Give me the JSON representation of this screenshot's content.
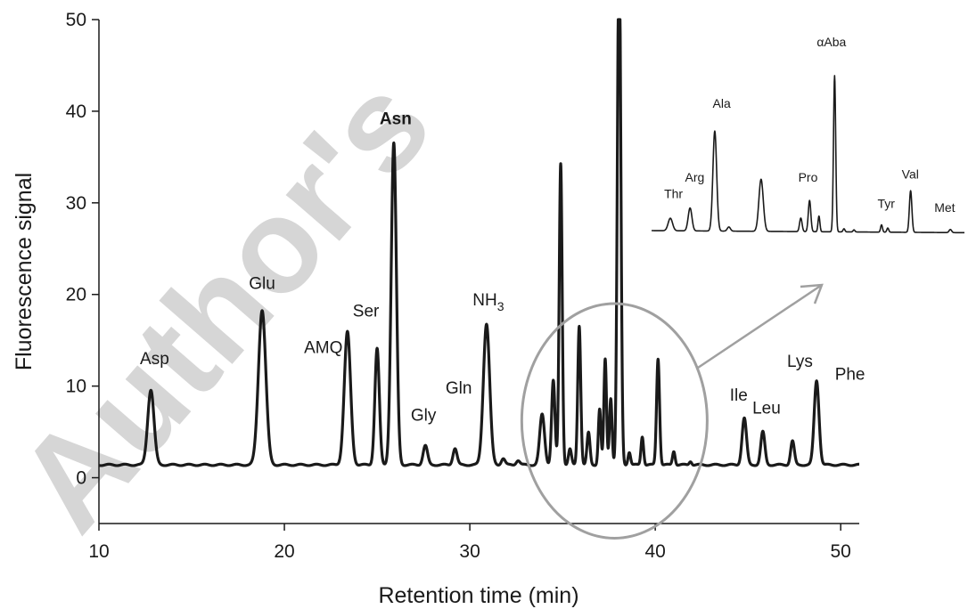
{
  "watermark": "Author's",
  "chart_data": {
    "type": "line",
    "xlabel": "Retention time (min)",
    "ylabel": "Fluorescence signal",
    "xlim": [
      10,
      51
    ],
    "ylim": [
      -5,
      50
    ],
    "x_ticks": [
      10,
      20,
      30,
      40,
      50
    ],
    "y_ticks": [
      0,
      10,
      20,
      30,
      40,
      50
    ],
    "grid": false,
    "baseline": 1.4,
    "line_color": "#1a1a1a",
    "callout_color": "#a0a0a0",
    "peaks": [
      {
        "x": 12.8,
        "y": 9.6,
        "w": 0.17
      },
      {
        "x": 18.8,
        "y": 18.3,
        "w": 0.2
      },
      {
        "x": 23.4,
        "y": 15.9,
        "w": 0.17
      },
      {
        "x": 25.0,
        "y": 14.1,
        "w": 0.12
      },
      {
        "x": 25.9,
        "y": 36.5,
        "w": 0.14
      },
      {
        "x": 27.6,
        "y": 3.5,
        "w": 0.12
      },
      {
        "x": 29.2,
        "y": 3.2,
        "w": 0.11
      },
      {
        "x": 30.9,
        "y": 16.8,
        "w": 0.17
      },
      {
        "x": 31.8,
        "y": 2.1,
        "w": 0.1
      },
      {
        "x": 32.6,
        "y": 1.9,
        "w": 0.1
      },
      {
        "x": 33.9,
        "y": 6.9,
        "w": 0.13
      },
      {
        "x": 34.5,
        "y": 10.6,
        "w": 0.09
      },
      {
        "x": 34.9,
        "y": 34.3,
        "w": 0.08
      },
      {
        "x": 35.4,
        "y": 3.1,
        "w": 0.08
      },
      {
        "x": 35.9,
        "y": 16.6,
        "w": 0.08
      },
      {
        "x": 36.4,
        "y": 4.9,
        "w": 0.08
      },
      {
        "x": 37.0,
        "y": 7.5,
        "w": 0.07
      },
      {
        "x": 37.3,
        "y": 12.9,
        "w": 0.07
      },
      {
        "x": 37.6,
        "y": 8.7,
        "w": 0.07
      },
      {
        "x": 38.05,
        "y": 60.0,
        "w": 0.09
      },
      {
        "x": 38.6,
        "y": 2.8,
        "w": 0.07
      },
      {
        "x": 39.3,
        "y": 4.5,
        "w": 0.07
      },
      {
        "x": 40.15,
        "y": 13.0,
        "w": 0.08
      },
      {
        "x": 41.0,
        "y": 2.9,
        "w": 0.07
      },
      {
        "x": 41.9,
        "y": 1.8,
        "w": 0.07
      },
      {
        "x": 44.8,
        "y": 6.5,
        "w": 0.12
      },
      {
        "x": 45.8,
        "y": 5.0,
        "w": 0.11
      },
      {
        "x": 47.4,
        "y": 4.0,
        "w": 0.1
      },
      {
        "x": 48.7,
        "y": 10.6,
        "w": 0.13
      }
    ],
    "peak_labels": [
      {
        "text": "Asp",
        "x": 13.0,
        "y": 12.4,
        "bold": false
      },
      {
        "text": "Glu",
        "x": 18.8,
        "y": 20.6,
        "bold": false
      },
      {
        "text": "AMQ",
        "x": 22.1,
        "y": 13.6,
        "bold": false
      },
      {
        "text": "Ser",
        "x": 24.4,
        "y": 17.6,
        "bold": false
      },
      {
        "text": "Asn",
        "x": 26.0,
        "y": 38.6,
        "bold": true
      },
      {
        "text": "Gly",
        "x": 27.5,
        "y": 6.2,
        "bold": false
      },
      {
        "text": "Gln",
        "x": 29.4,
        "y": 9.2,
        "bold": false
      },
      {
        "text": "NH",
        "sub": "3",
        "x": 31.0,
        "y": 18.8,
        "bold": false
      },
      {
        "text": "Ile",
        "x": 44.5,
        "y": 8.4,
        "bold": false
      },
      {
        "text": "Leu",
        "x": 46.0,
        "y": 7.0,
        "bold": false
      },
      {
        "text": "Lys",
        "x": 47.8,
        "y": 12.1,
        "bold": false
      },
      {
        "text": "Phe",
        "x": 50.5,
        "y": 10.7,
        "bold": false
      }
    ],
    "zoom_region": {
      "center_x": 37.8,
      "center_y": 6.2,
      "radius_x": 5.0,
      "radius_y": 12.8
    },
    "inset": {
      "description": "enlarged view of 37-43 min region",
      "peaks": [
        {
          "x": 0.06,
          "h": 0.12,
          "w": 0.007
        },
        {
          "x": 0.123,
          "h": 0.22,
          "w": 0.006
        },
        {
          "x": 0.202,
          "h": 0.96,
          "w": 0.006
        },
        {
          "x": 0.247,
          "h": 0.04,
          "w": 0.005
        },
        {
          "x": 0.35,
          "h": 0.5,
          "w": 0.007
        },
        {
          "x": 0.477,
          "h": 0.13,
          "w": 0.004
        },
        {
          "x": 0.505,
          "h": 0.3,
          "w": 0.004
        },
        {
          "x": 0.535,
          "h": 0.15,
          "w": 0.003
        },
        {
          "x": 0.585,
          "h": 1.5,
          "w": 0.0035
        },
        {
          "x": 0.615,
          "h": 0.03,
          "w": 0.003
        },
        {
          "x": 0.647,
          "h": 0.02,
          "w": 0.003
        },
        {
          "x": 0.735,
          "h": 0.07,
          "w": 0.003
        },
        {
          "x": 0.755,
          "h": 0.04,
          "w": 0.003
        },
        {
          "x": 0.828,
          "h": 0.4,
          "w": 0.004
        },
        {
          "x": 0.955,
          "h": 0.03,
          "w": 0.004
        }
      ],
      "labels": [
        {
          "text": "Thr",
          "x": 0.07,
          "h": 0.31
        },
        {
          "text": "Arg",
          "x": 0.138,
          "h": 0.47
        },
        {
          "text": "Ala",
          "x": 0.224,
          "h": 1.18
        },
        {
          "text": "Pro",
          "x": 0.5,
          "h": 0.47
        },
        {
          "text": "αAba",
          "x": 0.575,
          "h": 1.77
        },
        {
          "text": "Tyr",
          "x": 0.75,
          "h": 0.22
        },
        {
          "text": "Val",
          "x": 0.827,
          "h": 0.5
        },
        {
          "text": "Met",
          "x": 0.937,
          "h": 0.18
        }
      ]
    }
  }
}
